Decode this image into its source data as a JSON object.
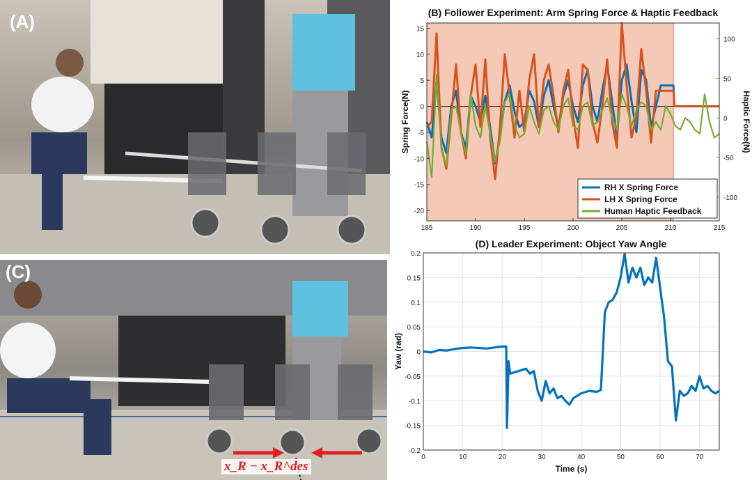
{
  "panels": {
    "a_label": "(A)",
    "c_label": "(C)",
    "c_annotation": "x_R − x_R^des"
  },
  "chart_data": [
    {
      "id": "B",
      "type": "line",
      "title": "(B) Follower Experiment: Arm Spring Force & Haptic Feedback",
      "xlabel": "",
      "ylabel": "Spring Force(N)",
      "y2label": "Haptic Force(N)",
      "xlim": [
        185,
        215
      ],
      "ylim": [
        -22,
        16
      ],
      "y2lim": [
        -130,
        120
      ],
      "xticks": [
        185,
        190,
        195,
        200,
        205,
        210,
        215
      ],
      "yticks": [
        15,
        10,
        5,
        0,
        -5,
        -10,
        -15,
        -20
      ],
      "y2ticks": [
        100,
        50,
        0,
        -50,
        -100
      ],
      "shaded_region": [
        185,
        210.3
      ],
      "legend_position": "bottom-right",
      "grid": false,
      "series": [
        {
          "name": "RH X Spring Force",
          "color": "#0072BD",
          "axis": "left",
          "x": [
            185,
            185.5,
            186,
            186.5,
            187,
            187.5,
            188,
            188.5,
            189,
            189.5,
            190,
            190.5,
            191,
            191.5,
            192,
            192.5,
            193,
            193.5,
            194,
            194.5,
            195,
            195.5,
            196,
            196.5,
            197,
            197.5,
            198,
            198.5,
            199,
            199.5,
            200,
            200.5,
            201,
            201.5,
            202,
            202.5,
            203,
            203.5,
            204,
            204.5,
            205,
            205.5,
            206,
            206.5,
            207,
            207.5,
            208,
            208.5,
            209,
            209.5,
            210,
            210.3,
            210.4,
            215
          ],
          "values": [
            -3,
            -6,
            5,
            -6,
            -9,
            0,
            3,
            -5,
            -8,
            2,
            0,
            -3,
            2,
            -4,
            -11,
            -6,
            1,
            4,
            -1,
            -4,
            -3,
            3,
            1,
            -4,
            2,
            5,
            0,
            -4,
            2,
            5,
            0,
            -3,
            4,
            7,
            0,
            -3,
            3,
            8,
            1,
            -6,
            5,
            8,
            1,
            -5,
            7,
            5,
            -4,
            0,
            4,
            4,
            4,
            4,
            0,
            0
          ]
        },
        {
          "name": "LH X Spring Force",
          "color": "#D95319",
          "axis": "left",
          "x": [
            185,
            185.5,
            186,
            186.5,
            187,
            187.5,
            188,
            188.5,
            189,
            189.5,
            190,
            190.5,
            191,
            191.5,
            192,
            192.5,
            193,
            193.5,
            194,
            194.5,
            195,
            195.5,
            196,
            196.5,
            197,
            197.5,
            198,
            198.5,
            199,
            199.5,
            200,
            200.5,
            201,
            201.5,
            202,
            202.5,
            203,
            203.5,
            204,
            204.5,
            205,
            205.5,
            206,
            206.5,
            207,
            207.5,
            208,
            208.5,
            209,
            209.5,
            210,
            210.3,
            210.4,
            215
          ],
          "values": [
            -4,
            -3,
            14,
            -8,
            -12,
            -2,
            8,
            -5,
            -10,
            2,
            8,
            -4,
            9,
            -6,
            -14,
            -4,
            10,
            2,
            -6,
            3,
            -5,
            5,
            10,
            -4,
            5,
            8,
            2,
            -5,
            3,
            7,
            -2,
            -8,
            8,
            7,
            -3,
            -7,
            0,
            9,
            -3,
            -8,
            16,
            4,
            -6,
            -2,
            11,
            3,
            -7,
            3,
            3,
            3,
            3,
            3,
            0,
            0
          ]
        },
        {
          "name": "Human Haptic Feedback",
          "color": "#77AC30",
          "axis": "right",
          "x": [
            185,
            185.5,
            186,
            186.5,
            187,
            187.5,
            188,
            188.5,
            189,
            189.5,
            190,
            190.5,
            191,
            191.5,
            192,
            192.5,
            193,
            193.5,
            194,
            194.5,
            195,
            195.5,
            196,
            196.5,
            197,
            197.5,
            198,
            198.5,
            199,
            199.5,
            200,
            200.5,
            201,
            201.5,
            202,
            202.5,
            203,
            203.5,
            204,
            204.5,
            205,
            205.5,
            206,
            206.5,
            207,
            207.5,
            208,
            208.5,
            209,
            209.5,
            210,
            210.5,
            211,
            211.5,
            212,
            212.5,
            213,
            213.5,
            214,
            214.5,
            215
          ],
          "values": [
            -30,
            -75,
            55,
            -40,
            -60,
            10,
            15,
            -20,
            -45,
            30,
            -10,
            -25,
            15,
            -20,
            -55,
            -30,
            20,
            30,
            -10,
            -25,
            -20,
            15,
            -5,
            -20,
            10,
            15,
            -5,
            -15,
            15,
            25,
            -10,
            -15,
            15,
            20,
            -10,
            -5,
            10,
            25,
            0,
            -15,
            30,
            15,
            -10,
            10,
            20,
            15,
            -15,
            -5,
            -15,
            15,
            5,
            -10,
            -15,
            0,
            -5,
            -15,
            -20,
            30,
            -5,
            -25,
            -20
          ]
        }
      ]
    },
    {
      "id": "D",
      "type": "line",
      "title": "(D) Leader Experiment: Object Yaw Angle",
      "xlabel": "Time (s)",
      "ylabel": "Yaw (rad)",
      "xlim": [
        0,
        75
      ],
      "ylim": [
        -0.2,
        0.2
      ],
      "xticks": [
        0,
        10,
        20,
        30,
        40,
        50,
        60,
        70
      ],
      "yticks": [
        0.2,
        0.15,
        0.1,
        0.05,
        0,
        -0.05,
        -0.1,
        -0.15,
        -0.2
      ],
      "grid": true,
      "series": [
        {
          "name": "",
          "color": "#0072BD",
          "x": [
            0,
            2,
            4,
            6,
            8,
            10,
            12,
            14,
            16,
            18,
            20,
            21,
            21.2,
            21.6,
            22,
            24,
            26,
            27,
            28,
            29,
            30,
            31,
            32,
            33,
            34,
            35,
            36,
            37,
            38,
            40,
            42,
            44,
            45,
            46,
            47,
            48,
            49,
            50,
            51,
            52,
            53,
            54,
            55,
            56,
            57,
            58,
            59,
            60,
            61,
            62,
            63,
            64,
            65,
            66,
            67,
            68,
            69,
            70,
            71,
            72,
            73,
            74,
            75
          ],
          "values": [
            0,
            -0.002,
            0.003,
            0.002,
            0.005,
            0.007,
            0.008,
            0.007,
            0.006,
            0.008,
            0.01,
            0.01,
            -0.155,
            -0.02,
            -0.045,
            -0.04,
            -0.035,
            -0.045,
            -0.04,
            -0.08,
            -0.1,
            -0.06,
            -0.085,
            -0.075,
            -0.095,
            -0.09,
            -0.1,
            -0.108,
            -0.095,
            -0.085,
            -0.08,
            -0.082,
            -0.078,
            0.08,
            0.1,
            0.105,
            0.12,
            0.15,
            0.198,
            0.14,
            0.17,
            0.15,
            0.17,
            0.135,
            0.15,
            0.14,
            0.19,
            0.13,
            0.07,
            -0.02,
            -0.03,
            -0.14,
            -0.08,
            -0.09,
            -0.085,
            -0.07,
            -0.08,
            -0.05,
            -0.075,
            -0.07,
            -0.08,
            -0.085,
            -0.08
          ]
        }
      ]
    }
  ]
}
